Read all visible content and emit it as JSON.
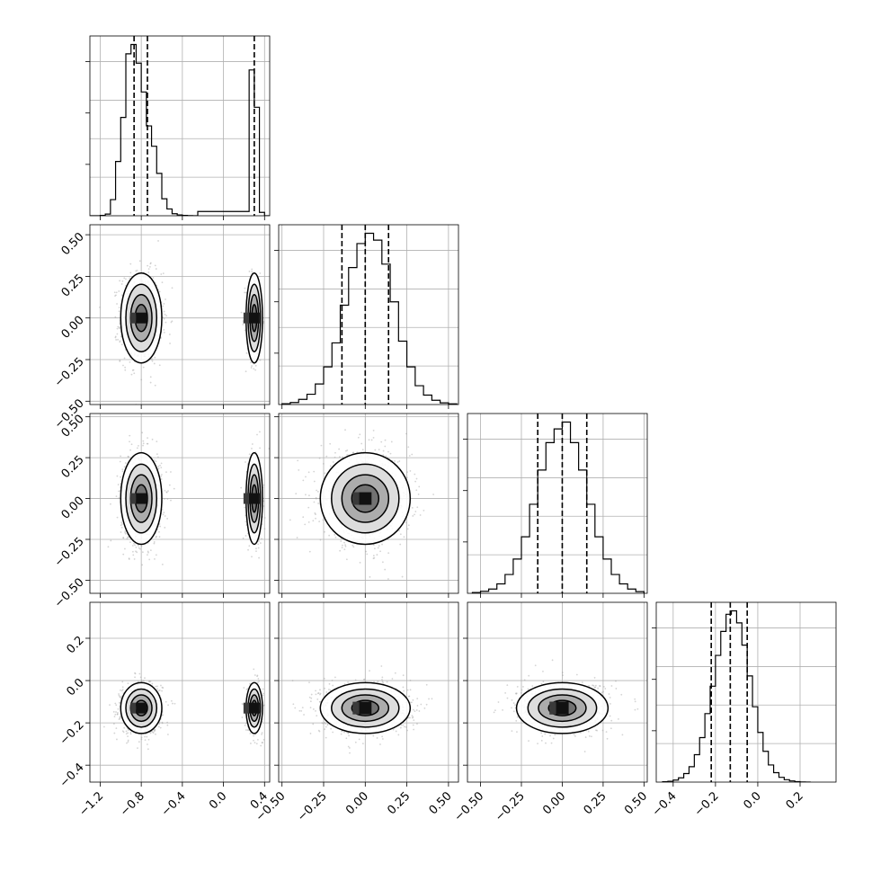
{
  "chart_data": {
    "type": "corner",
    "grid": true,
    "n_params": 4,
    "titles": [],
    "axis_labels": [],
    "params": [
      {
        "range": [
          -1.3,
          0.45
        ],
        "tick_values": [
          -1.2,
          -0.8,
          -0.4,
          0.0,
          0.4
        ],
        "tick_labels": [
          "−1.2",
          "−0.8",
          "−0.4",
          "0.0",
          "0.4"
        ],
        "quantiles": [
          -0.87,
          -0.74,
          0.3
        ],
        "hist": {
          "edges": [
            -1.3,
            -1.2,
            -1.15,
            -1.1,
            -1.05,
            -1.0,
            -0.95,
            -0.9,
            -0.85,
            -0.8,
            -0.75,
            -0.7,
            -0.65,
            -0.6,
            -0.55,
            -0.5,
            -0.45,
            -0.4,
            -0.35,
            -0.3,
            -0.25,
            0.25,
            0.3,
            0.35,
            0.4,
            0.45
          ],
          "counts": [
            0,
            2,
            10,
            95,
            320,
            580,
            955,
            1010,
            900,
            730,
            530,
            410,
            250,
            100,
            40,
            12,
            5,
            2,
            1,
            0,
            25,
            860,
            640,
            20,
            0
          ]
        },
        "modes": [
          {
            "center": -0.8,
            "half_width": 0.2,
            "weight": 1.0
          },
          {
            "center": 0.3,
            "half_width": 0.08,
            "weight": 0.35
          }
        ]
      },
      {
        "range": [
          -0.52,
          0.56
        ],
        "tick_values": [
          -0.5,
          -0.25,
          0.0,
          0.25,
          0.5
        ],
        "tick_labels": [
          "−0.50",
          "−0.25",
          "0.00",
          "0.25",
          "0.50"
        ],
        "quantiles": [
          -0.14,
          0.0,
          0.14
        ],
        "hist": {
          "edges": [
            -0.5,
            -0.45,
            -0.4,
            -0.35,
            -0.3,
            -0.25,
            -0.2,
            -0.15,
            -0.1,
            -0.05,
            0.0,
            0.05,
            0.1,
            0.15,
            0.2,
            0.25,
            0.3,
            0.35,
            0.4,
            0.45,
            0.5,
            0.55
          ],
          "counts": [
            5,
            12,
            30,
            60,
            120,
            220,
            360,
            580,
            800,
            940,
            1000,
            960,
            820,
            600,
            370,
            220,
            110,
            55,
            25,
            10,
            4
          ]
        },
        "modes": [
          {
            "center": 0.0,
            "half_width": 0.27,
            "weight": 1.0
          }
        ]
      },
      {
        "range": [
          -0.58,
          0.52
        ],
        "tick_values": [
          -0.5,
          -0.25,
          0.0,
          0.25,
          0.5
        ],
        "tick_labels": [
          "−0.50",
          "−0.25",
          "0.00",
          "0.25",
          "0.50"
        ],
        "quantiles": [
          -0.15,
          0.0,
          0.15
        ],
        "hist": {
          "edges": [
            -0.55,
            -0.5,
            -0.45,
            -0.4,
            -0.35,
            -0.3,
            -0.25,
            -0.2,
            -0.15,
            -0.1,
            -0.05,
            0.0,
            0.05,
            0.1,
            0.15,
            0.2,
            0.25,
            0.3,
            0.35,
            0.4,
            0.45,
            0.5
          ],
          "counts": [
            5,
            12,
            25,
            55,
            110,
            200,
            330,
            520,
            720,
            880,
            960,
            1000,
            880,
            720,
            520,
            330,
            200,
            110,
            55,
            25,
            10
          ]
        },
        "modes": [
          {
            "center": 0.0,
            "half_width": 0.28,
            "weight": 1.0
          }
        ]
      },
      {
        "range": [
          -0.48,
          0.37
        ],
        "tick_values": [
          -0.4,
          -0.2,
          0.0,
          0.2
        ],
        "tick_labels": [
          "−0.4",
          "−0.2",
          "0.0",
          "0.2"
        ],
        "quantiles": [
          -0.22,
          -0.13,
          -0.05
        ],
        "hist": {
          "edges": [
            -0.45,
            -0.425,
            -0.4,
            -0.375,
            -0.35,
            -0.325,
            -0.3,
            -0.275,
            -0.25,
            -0.225,
            -0.2,
            -0.175,
            -0.15,
            -0.125,
            -0.1,
            -0.075,
            -0.05,
            -0.025,
            0.0,
            0.025,
            0.05,
            0.075,
            0.1,
            0.125,
            0.15,
            0.175,
            0.2,
            0.225,
            0.25
          ],
          "counts": [
            2,
            5,
            12,
            25,
            50,
            90,
            160,
            260,
            400,
            560,
            740,
            880,
            980,
            1000,
            930,
            800,
            620,
            440,
            290,
            180,
            100,
            55,
            28,
            14,
            7,
            3,
            1,
            0
          ]
        },
        "modes": [
          {
            "center": -0.13,
            "half_width": 0.12,
            "weight": 1.0
          }
        ]
      }
    ]
  }
}
